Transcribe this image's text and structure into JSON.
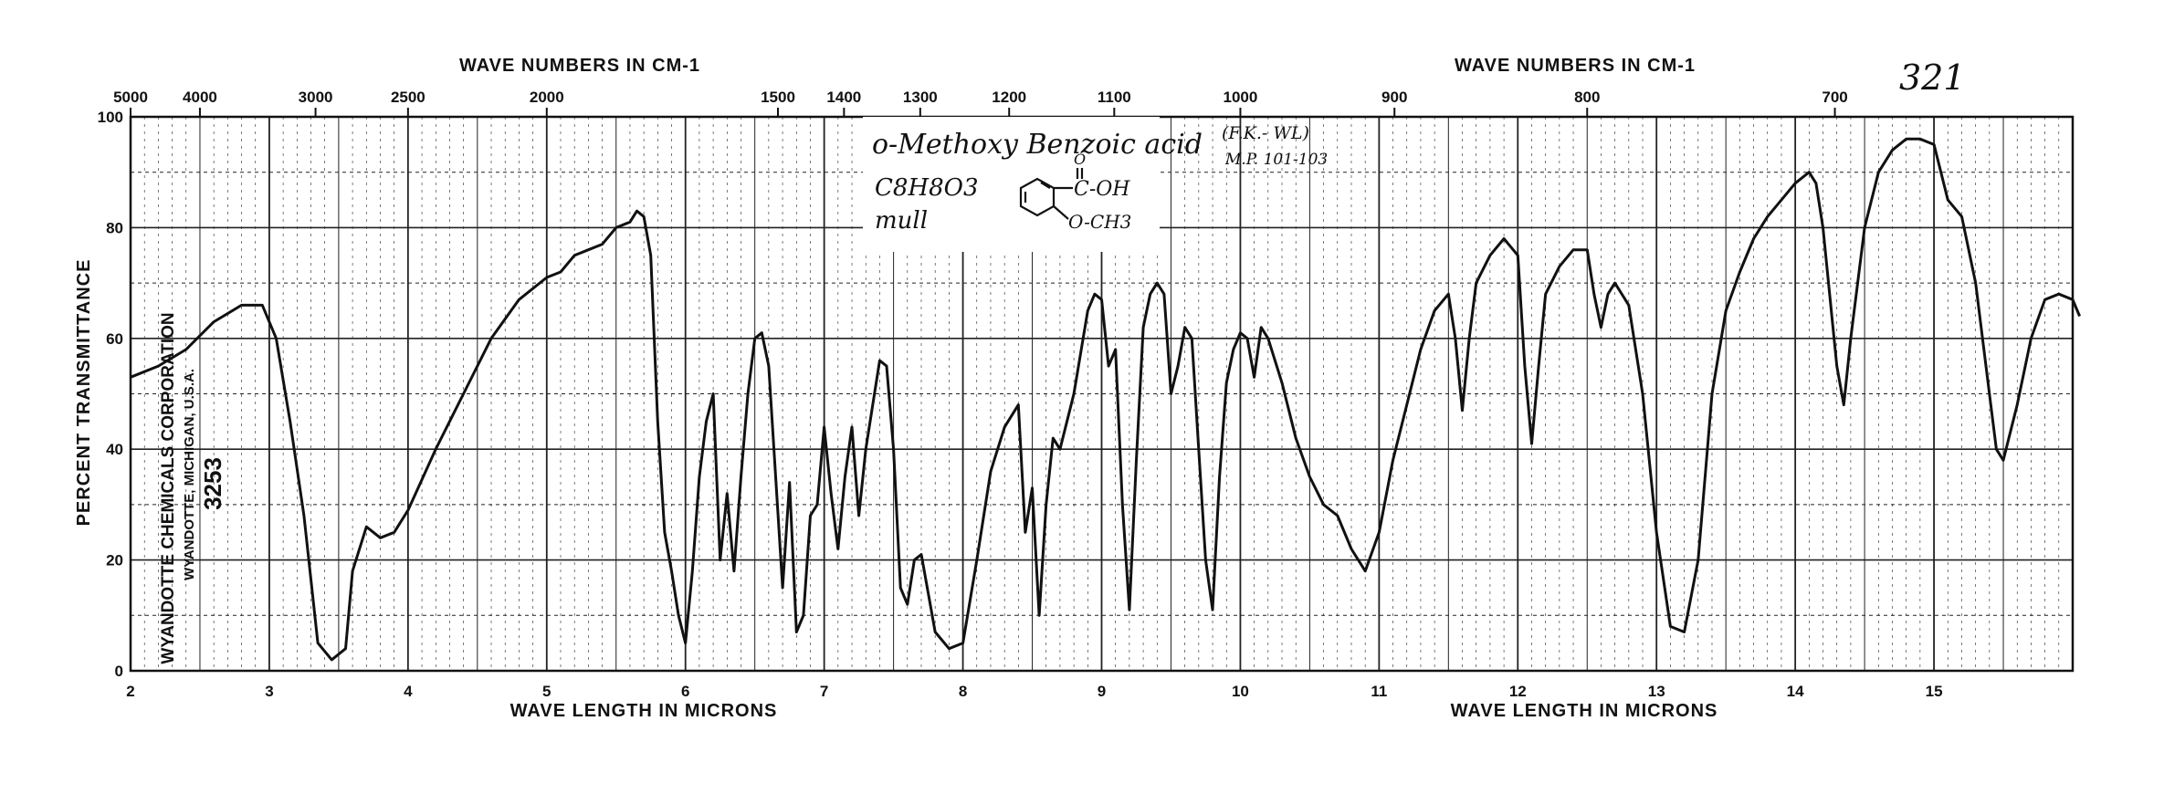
{
  "chart_data": {
    "type": "line",
    "xlabel": "WAVE LENGTH IN MICRONS",
    "ylabel": "PERCENT TRANSMITTANCE",
    "top_axis_label": "WAVE NUMBERS IN CM-1",
    "xlim": [
      2,
      16
    ],
    "ylim": [
      0,
      100
    ],
    "grid": true,
    "x_ticks": [
      {
        "value": 2,
        "label": "2"
      },
      {
        "value": 3,
        "label": "3"
      },
      {
        "value": 4,
        "label": "4"
      },
      {
        "value": 5,
        "label": "5"
      },
      {
        "value": 6,
        "label": "6"
      },
      {
        "value": 7,
        "label": "7"
      },
      {
        "value": 8,
        "label": "8"
      },
      {
        "value": 9,
        "label": "9"
      },
      {
        "value": 10,
        "label": "10"
      },
      {
        "value": 11,
        "label": "11"
      },
      {
        "value": 12,
        "label": "12"
      },
      {
        "value": 13,
        "label": "13"
      },
      {
        "value": 14,
        "label": "14"
      },
      {
        "value": 15,
        "label": "15"
      }
    ],
    "y_ticks": [
      {
        "value": 0,
        "label": "0"
      },
      {
        "value": 20,
        "label": "20"
      },
      {
        "value": 40,
        "label": "40"
      },
      {
        "value": 60,
        "label": "60"
      },
      {
        "value": 80,
        "label": "80"
      },
      {
        "value": 100,
        "label": "100"
      }
    ],
    "top_ticks": [
      {
        "wavenumber": 5000,
        "label": "5000"
      },
      {
        "wavenumber": 4000,
        "label": "4000"
      },
      {
        "wavenumber": 3000,
        "label": "3000"
      },
      {
        "wavenumber": 2500,
        "label": "2500"
      },
      {
        "wavenumber": 2000,
        "label": "2000"
      },
      {
        "wavenumber": 1500,
        "label": "1500"
      },
      {
        "wavenumber": 1400,
        "label": "1400"
      },
      {
        "wavenumber": 1300,
        "label": "1300"
      },
      {
        "wavenumber": 1200,
        "label": "1200"
      },
      {
        "wavenumber": 1100,
        "label": "1100"
      },
      {
        "wavenumber": 1000,
        "label": "1000"
      },
      {
        "wavenumber": 900,
        "label": "900"
      },
      {
        "wavenumber": 800,
        "label": "800"
      },
      {
        "wavenumber": 700,
        "label": "700"
      }
    ],
    "series": [
      {
        "points": [
          [
            2.0,
            53
          ],
          [
            2.2,
            55
          ],
          [
            2.4,
            58
          ],
          [
            2.6,
            63
          ],
          [
            2.8,
            66
          ],
          [
            2.95,
            66
          ],
          [
            3.05,
            60
          ],
          [
            3.15,
            45
          ],
          [
            3.25,
            28
          ],
          [
            3.35,
            5
          ],
          [
            3.45,
            2
          ],
          [
            3.55,
            4
          ],
          [
            3.6,
            18
          ],
          [
            3.7,
            26
          ],
          [
            3.8,
            24
          ],
          [
            3.9,
            25
          ],
          [
            4.0,
            29
          ],
          [
            4.2,
            40
          ],
          [
            4.4,
            50
          ],
          [
            4.6,
            60
          ],
          [
            4.8,
            67
          ],
          [
            5.0,
            71
          ],
          [
            5.1,
            72
          ],
          [
            5.2,
            75
          ],
          [
            5.3,
            76
          ],
          [
            5.4,
            77
          ],
          [
            5.5,
            80
          ],
          [
            5.6,
            81
          ],
          [
            5.65,
            83
          ],
          [
            5.7,
            82
          ],
          [
            5.75,
            75
          ],
          [
            5.8,
            45
          ],
          [
            5.85,
            25
          ],
          [
            5.9,
            18
          ],
          [
            5.95,
            10
          ],
          [
            6.0,
            5
          ],
          [
            6.05,
            18
          ],
          [
            6.1,
            35
          ],
          [
            6.15,
            45
          ],
          [
            6.2,
            50
          ],
          [
            6.25,
            20
          ],
          [
            6.3,
            32
          ],
          [
            6.35,
            18
          ],
          [
            6.4,
            35
          ],
          [
            6.45,
            50
          ],
          [
            6.5,
            60
          ],
          [
            6.55,
            61
          ],
          [
            6.6,
            55
          ],
          [
            6.65,
            35
          ],
          [
            6.7,
            15
          ],
          [
            6.75,
            34
          ],
          [
            6.8,
            7
          ],
          [
            6.85,
            10
          ],
          [
            6.9,
            28
          ],
          [
            6.95,
            30
          ],
          [
            7.0,
            44
          ],
          [
            7.05,
            32
          ],
          [
            7.1,
            22
          ],
          [
            7.15,
            35
          ],
          [
            7.2,
            44
          ],
          [
            7.25,
            28
          ],
          [
            7.3,
            40
          ],
          [
            7.35,
            48
          ],
          [
            7.4,
            56
          ],
          [
            7.45,
            55
          ],
          [
            7.5,
            40
          ],
          [
            7.55,
            15
          ],
          [
            7.6,
            12
          ],
          [
            7.65,
            20
          ],
          [
            7.7,
            21
          ],
          [
            7.75,
            14
          ],
          [
            7.8,
            7
          ],
          [
            7.9,
            4
          ],
          [
            8.0,
            5
          ],
          [
            8.1,
            20
          ],
          [
            8.2,
            36
          ],
          [
            8.3,
            44
          ],
          [
            8.4,
            48
          ],
          [
            8.45,
            25
          ],
          [
            8.5,
            33
          ],
          [
            8.55,
            10
          ],
          [
            8.6,
            30
          ],
          [
            8.65,
            42
          ],
          [
            8.7,
            40
          ],
          [
            8.8,
            50
          ],
          [
            8.9,
            65
          ],
          [
            8.95,
            68
          ],
          [
            9.0,
            67
          ],
          [
            9.05,
            55
          ],
          [
            9.1,
            58
          ],
          [
            9.15,
            30
          ],
          [
            9.2,
            11
          ],
          [
            9.25,
            38
          ],
          [
            9.3,
            62
          ],
          [
            9.35,
            68
          ],
          [
            9.4,
            70
          ],
          [
            9.45,
            68
          ],
          [
            9.5,
            50
          ],
          [
            9.55,
            55
          ],
          [
            9.6,
            62
          ],
          [
            9.65,
            60
          ],
          [
            9.7,
            40
          ],
          [
            9.75,
            20
          ],
          [
            9.8,
            11
          ],
          [
            9.85,
            35
          ],
          [
            9.9,
            52
          ],
          [
            9.95,
            58
          ],
          [
            10.0,
            61
          ],
          [
            10.05,
            60
          ],
          [
            10.1,
            53
          ],
          [
            10.15,
            62
          ],
          [
            10.2,
            60
          ],
          [
            10.3,
            52
          ],
          [
            10.4,
            42
          ],
          [
            10.5,
            35
          ],
          [
            10.6,
            30
          ],
          [
            10.7,
            28
          ],
          [
            10.8,
            22
          ],
          [
            10.9,
            18
          ],
          [
            11.0,
            25
          ],
          [
            11.1,
            38
          ],
          [
            11.2,
            48
          ],
          [
            11.3,
            58
          ],
          [
            11.4,
            65
          ],
          [
            11.5,
            68
          ],
          [
            11.55,
            60
          ],
          [
            11.6,
            47
          ],
          [
            11.65,
            60
          ],
          [
            11.7,
            70
          ],
          [
            11.8,
            75
          ],
          [
            11.9,
            78
          ],
          [
            12.0,
            75
          ],
          [
            12.05,
            55
          ],
          [
            12.1,
            41
          ],
          [
            12.15,
            55
          ],
          [
            12.2,
            68
          ],
          [
            12.3,
            73
          ],
          [
            12.4,
            76
          ],
          [
            12.5,
            76
          ],
          [
            12.55,
            68
          ],
          [
            12.6,
            62
          ],
          [
            12.65,
            68
          ],
          [
            12.7,
            70
          ],
          [
            12.8,
            66
          ],
          [
            12.9,
            50
          ],
          [
            13.0,
            25
          ],
          [
            13.1,
            8
          ],
          [
            13.2,
            7
          ],
          [
            13.3,
            20
          ],
          [
            13.4,
            50
          ],
          [
            13.5,
            65
          ],
          [
            13.6,
            72
          ],
          [
            13.7,
            78
          ],
          [
            13.8,
            82
          ],
          [
            13.9,
            85
          ],
          [
            14.0,
            88
          ],
          [
            14.1,
            90
          ],
          [
            14.15,
            88
          ],
          [
            14.2,
            80
          ],
          [
            14.3,
            55
          ],
          [
            14.35,
            48
          ],
          [
            14.4,
            60
          ],
          [
            14.5,
            80
          ],
          [
            14.6,
            90
          ],
          [
            14.7,
            94
          ],
          [
            14.8,
            96
          ],
          [
            14.9,
            96
          ],
          [
            15.0,
            95
          ],
          [
            15.1,
            85
          ],
          [
            15.2,
            82
          ],
          [
            15.3,
            70
          ],
          [
            15.4,
            50
          ],
          [
            15.45,
            40
          ],
          [
            15.5,
            38
          ],
          [
            15.6,
            48
          ],
          [
            15.7,
            60
          ],
          [
            15.8,
            67
          ],
          [
            15.9,
            68
          ],
          [
            16.0,
            67
          ],
          [
            16.05,
            64
          ]
        ]
      }
    ],
    "annotations": {
      "compound": "o-Methoxy Benzoic acid",
      "formula": "C8H8O3",
      "method": "mull",
      "initials": "(F.K.- WL)",
      "melting_point": "M.P. 101-103",
      "carbonyl_o": "O",
      "group_cooh": "C-OH",
      "group_och3": "O-CH3",
      "page_number": "321",
      "corporation": "WYANDOTTE CHEMICALS CORPORATION",
      "location": "WYANDOTTE, MICHIGAN, U.S.A.",
      "chart_number": "3253"
    }
  }
}
